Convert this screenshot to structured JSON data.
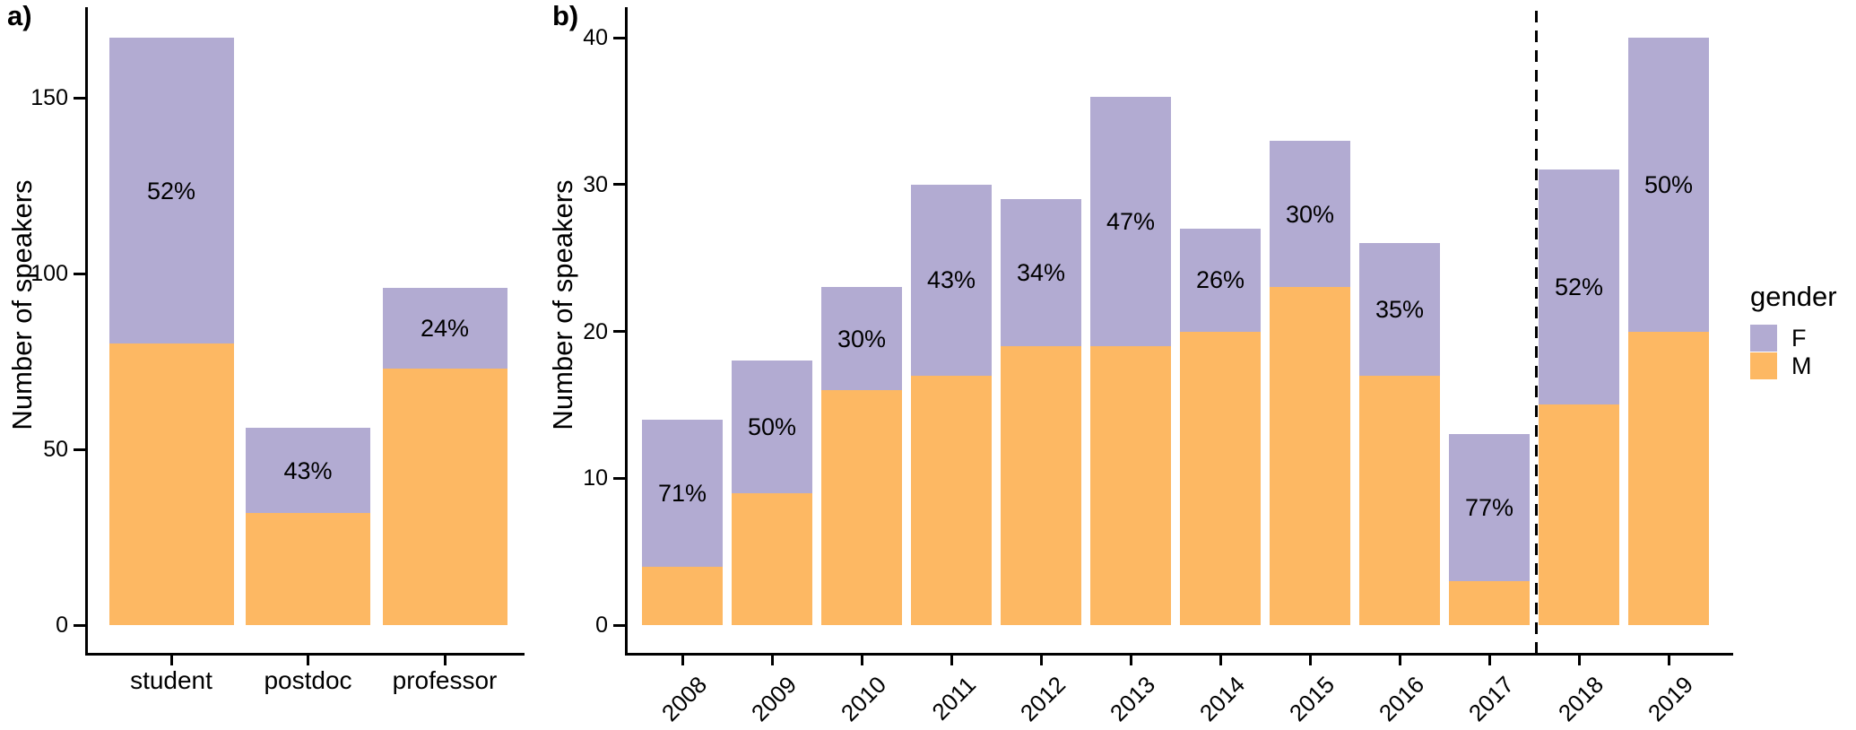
{
  "colors": {
    "F": "#b2abd2",
    "M": "#fdb863",
    "axis": "#000000",
    "background": "#ffffff"
  },
  "legend": {
    "title": "gender",
    "items": [
      {
        "label": "F",
        "color": "#b2abd2"
      },
      {
        "label": "M",
        "color": "#fdb863"
      }
    ]
  },
  "chart_data": [
    {
      "panel": "a",
      "letter": "a)",
      "type": "bar",
      "stacked": true,
      "title": "",
      "xlabel": "",
      "ylabel": "Number of speakers",
      "categories": [
        "student",
        "postdoc",
        "professor"
      ],
      "series": [
        {
          "name": "M",
          "values": [
            80,
            32,
            73
          ]
        },
        {
          "name": "F",
          "values": [
            87,
            24,
            23
          ]
        }
      ],
      "totals": [
        167,
        56,
        96
      ],
      "percent_labels": [
        "52%",
        "43%",
        "24%"
      ],
      "percent_label_meaning": "percentage of female (F) speakers, printed inside the F segment",
      "yticks": [
        0,
        50,
        100,
        150
      ],
      "ylim": [
        0,
        175
      ],
      "grid": false,
      "legend_position": "none"
    },
    {
      "panel": "b",
      "letter": "b)",
      "type": "bar",
      "stacked": true,
      "title": "",
      "xlabel": "",
      "ylabel": "Number of speakers",
      "categories": [
        "2008",
        "2009",
        "2010",
        "2011",
        "2012",
        "2013",
        "2014",
        "2015",
        "2016",
        "2017",
        "2018",
        "2019"
      ],
      "series": [
        {
          "name": "M",
          "values": [
            4,
            9,
            16,
            17,
            19,
            19,
            20,
            23,
            17,
            3,
            15,
            20
          ]
        },
        {
          "name": "F",
          "values": [
            10,
            9,
            7,
            13,
            10,
            17,
            7,
            10,
            9,
            10,
            16,
            20
          ]
        }
      ],
      "totals": [
        14,
        18,
        23,
        30,
        29,
        36,
        27,
        33,
        26,
        13,
        31,
        40
      ],
      "percent_labels": [
        "71%",
        "50%",
        "30%",
        "43%",
        "34%",
        "47%",
        "26%",
        "30%",
        "35%",
        "77%",
        "52%",
        "50%"
      ],
      "percent_label_meaning": "percentage of female (F) speakers, printed inside the F segment",
      "yticks": [
        0,
        10,
        20,
        30,
        40
      ],
      "ylim": [
        0,
        42
      ],
      "grid": false,
      "dashed_divider_between": [
        "2017",
        "2018"
      ],
      "x_tick_rotation_deg": 45,
      "legend_position": "right"
    }
  ]
}
